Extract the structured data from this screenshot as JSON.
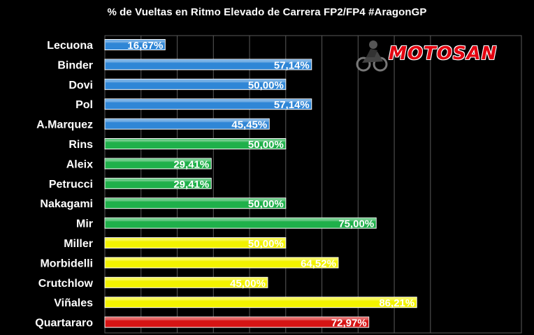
{
  "title": "% de Vueltas en Ritmo Elevado de Carrera FP2/FP4 #AragonGP",
  "logo": {
    "text": "MOTOSAN",
    "icon": "motorcycle-rider-icon"
  },
  "colors": {
    "background": "#000000",
    "grid": "#5a5a5a",
    "blue": "#2f86d6",
    "green": "#1fb04a",
    "yellow": "#f2f200",
    "red": "#d61414"
  },
  "chart_data": {
    "type": "bar",
    "orientation": "horizontal",
    "title": "% de Vueltas en Ritmo Elevado de Carrera FP2/FP4 #AragonGP",
    "xlim": [
      0,
      100
    ],
    "grid": true,
    "categories": [
      "Lecuona",
      "Binder",
      "Dovi",
      "Pol",
      "A.Marquez",
      "Rins",
      "Aleix",
      "Petrucci",
      "Nakagami",
      "Mir",
      "Miller",
      "Morbidelli",
      "Crutchlow",
      "Viñales",
      "Quartararo"
    ],
    "values": [
      16.67,
      57.14,
      50.0,
      57.14,
      45.45,
      50.0,
      29.41,
      29.41,
      50.0,
      75.0,
      50.0,
      64.52,
      45.0,
      86.21,
      72.97
    ],
    "labels": [
      "16,67%",
      "57,14%",
      "50,00%",
      "57,14%",
      "45,45%",
      "50,00%",
      "29,41%",
      "29,41%",
      "50,00%",
      "75,00%",
      "50,00%",
      "64,52%",
      "45,00%",
      "86,21%",
      "72,97%"
    ],
    "bar_colors": [
      "#2f86d6",
      "#2f86d6",
      "#2f86d6",
      "#2f86d6",
      "#2f86d6",
      "#1fb04a",
      "#1fb04a",
      "#1fb04a",
      "#1fb04a",
      "#1fb04a",
      "#f2f200",
      "#f2f200",
      "#f2f200",
      "#f2f200",
      "#d61414"
    ]
  }
}
